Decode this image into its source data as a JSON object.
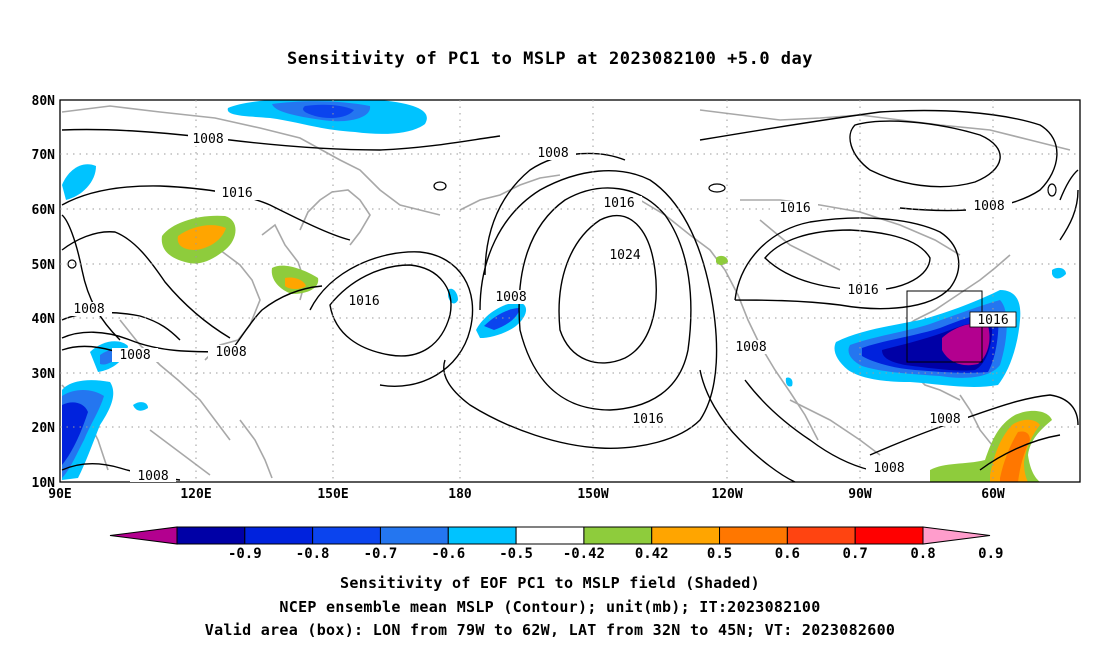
{
  "title": "Sensitivity of PC1 to MSLP at 2023082100 +5.0 day",
  "lat_labels": [
    "80N",
    "70N",
    "60N",
    "50N",
    "40N",
    "30N",
    "20N",
    "10N"
  ],
  "lon_labels": [
    "90E",
    "120E",
    "150E",
    "180",
    "150W",
    "120W",
    "90W",
    "60W"
  ],
  "contour_labels": [
    "1008",
    "1016",
    "1008",
    "1016",
    "1016",
    "1024",
    "1008",
    "1016",
    "1008",
    "1008",
    "1008",
    "1016",
    "1008",
    "1008",
    "1008",
    "1008",
    "1016",
    "1008"
  ],
  "colorbar": {
    "labels": [
      "-0.9",
      "-0.8",
      "-0.7",
      "-0.6",
      "-0.5",
      "-0.42",
      "0.42",
      "0.5",
      "0.6",
      "0.7",
      "0.8",
      "0.9"
    ],
    "colors": [
      "#b3008f",
      "#0000a6",
      "#0022dd",
      "#0b44ee",
      "#2476f0",
      "#00c3ff",
      "#ffffff",
      "#8ecc3c",
      "#ffa500",
      "#ff7700",
      "#ff4411",
      "#ff0000",
      "#ff9dcc"
    ]
  },
  "captions": [
    "Sensitivity of EOF PC1 to MSLP field (Shaded)",
    "NCEP ensemble mean MSLP (Contour); unit(mb); IT:2023082100",
    "Valid area (box): LON from 79W to 62W, LAT from 32N to 45N; VT: 2023082600"
  ]
}
